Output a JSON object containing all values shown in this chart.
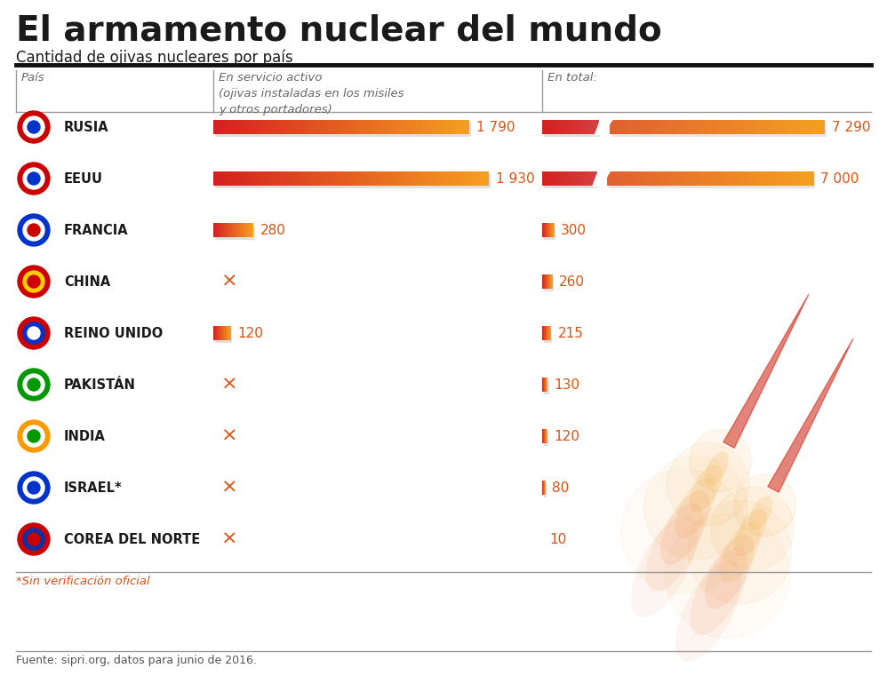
{
  "title": "El armamento nuclear del mundo",
  "subtitle": "Cantidad de ojivas nucleares por país",
  "col1_header": "País",
  "col2_header": "En servicio activo\n(ojivas instaladas en los misiles\ny otros portadores)",
  "col3_header": "En total:",
  "countries": [
    "RUSIA",
    "EEUU",
    "FRANCIA",
    "CHINA",
    "REINO UNIDO",
    "PAKISTÁN",
    "INDIA",
    "ISRAEL*",
    "COREA DEL NORTE"
  ],
  "active": [
    1790,
    1930,
    280,
    null,
    120,
    null,
    null,
    null,
    null
  ],
  "total": [
    7290,
    7000,
    300,
    260,
    215,
    130,
    120,
    80,
    10
  ],
  "active_labels": [
    "1 790",
    "1 930",
    "280",
    null,
    "120",
    null,
    null,
    null,
    null
  ],
  "total_labels": [
    "7 290",
    "7 000",
    "300",
    "260",
    "215",
    "130",
    "120",
    "80",
    "10"
  ],
  "max_active": 1930,
  "max_total": 7290,
  "bar_color_left": "#d42020",
  "bar_color_right": "#f5a020",
  "value_color": "#e05010",
  "footnote": "*Sin verificación oficial",
  "source": "Fuente: sipri.org, datos para junio de 2016.",
  "background_color": "#ffffff",
  "title_color": "#1a1a1a",
  "subtitle_color": "#1a1a1a",
  "header_color": "#666666",
  "shadow_color": "#cccccc",
  "line_color": "#999999",
  "thick_line_color": "#111111"
}
